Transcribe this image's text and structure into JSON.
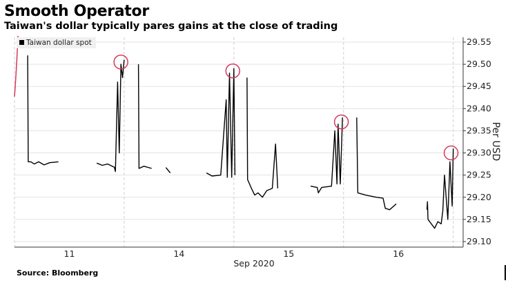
{
  "title": "Smooth Operator",
  "subtitle": "Taiwan's dollar typically pares gains at the close of trading",
  "source": "Source: Bloomberg",
  "chart_data": {
    "type": "line",
    "title": "Smooth Operator",
    "subtitle": "Taiwan's dollar typically pares gains at the close of trading",
    "xlabel": "Sep 2020",
    "ylabel": "Per USD",
    "legend": {
      "label": "Taiwan dollar spot",
      "placement": "top-left"
    },
    "x_unit": "trading session index",
    "xlim": [
      0,
      4.09
    ],
    "ylim": [
      29.1,
      29.55
    ],
    "yticks": [
      "29.10",
      "29.15",
      "29.20",
      "29.25",
      "29.30",
      "29.35",
      "29.40",
      "29.45",
      "29.50",
      "29.55"
    ],
    "xticks": [
      {
        "x": 0.5,
        "label": "11"
      },
      {
        "x": 1.5,
        "label": "14"
      },
      {
        "x": 2.5,
        "label": "15"
      },
      {
        "x": 3.5,
        "label": "16"
      }
    ],
    "session_breaks": [
      0,
      1,
      2,
      3,
      4
    ],
    "highlight_circles": [
      {
        "x": 0.97,
        "y": 29.505
      },
      {
        "x": 1.99,
        "y": 29.485
      },
      {
        "x": 2.98,
        "y": 29.37
      },
      {
        "x": 3.98,
        "y": 29.3
      }
    ],
    "grid": true,
    "series": [
      {
        "name": "Taiwan dollar spot",
        "color": "#000000",
        "points": [
          [
            0.12,
            29.52
          ],
          [
            0.125,
            29.28
          ],
          [
            0.15,
            29.28
          ],
          [
            0.18,
            29.275
          ],
          [
            0.22,
            29.28
          ],
          [
            0.27,
            29.273
          ],
          [
            0.32,
            29.278
          ],
          [
            0.4,
            29.28
          ],
          [
            0.55,
            29.278
          ],
          [
            0.75,
            29.277
          ],
          [
            0.8,
            29.272
          ],
          [
            0.85,
            29.275
          ],
          [
            0.89,
            29.27
          ],
          [
            0.91,
            29.268
          ],
          [
            0.92,
            29.258
          ],
          [
            0.94,
            29.46
          ],
          [
            0.955,
            29.3
          ],
          [
            0.97,
            29.5
          ],
          [
            0.985,
            29.47
          ],
          [
            1.0,
            29.51
          ],
          [
            1.13,
            29.5
          ],
          [
            1.135,
            29.265
          ],
          [
            1.18,
            29.27
          ],
          [
            1.25,
            29.265
          ],
          [
            1.38,
            29.267
          ],
          [
            1.42,
            29.255
          ],
          [
            1.6,
            29.257
          ],
          [
            1.75,
            29.255
          ],
          [
            1.8,
            29.248
          ],
          [
            1.88,
            29.25
          ],
          [
            1.93,
            29.42
          ],
          [
            1.94,
            29.245
          ],
          [
            1.96,
            29.48
          ],
          [
            1.98,
            29.245
          ],
          [
            2.0,
            29.49
          ],
          [
            2.01,
            29.25
          ],
          [
            2.12,
            29.47
          ],
          [
            2.125,
            29.24
          ],
          [
            2.16,
            29.22
          ],
          [
            2.19,
            29.205
          ],
          [
            2.22,
            29.21
          ],
          [
            2.26,
            29.2
          ],
          [
            2.3,
            29.215
          ],
          [
            2.35,
            29.22
          ],
          [
            2.38,
            29.32
          ],
          [
            2.4,
            29.22
          ],
          [
            2.5,
            29.225
          ],
          [
            2.6,
            29.228
          ],
          [
            2.7,
            29.225
          ],
          [
            2.76,
            29.222
          ],
          [
            2.77,
            29.21
          ],
          [
            2.8,
            29.222
          ],
          [
            2.89,
            29.225
          ],
          [
            2.92,
            29.35
          ],
          [
            2.94,
            29.23
          ],
          [
            2.95,
            29.365
          ],
          [
            2.97,
            29.23
          ],
          [
            2.99,
            29.38
          ],
          [
            3.12,
            29.38
          ],
          [
            3.13,
            29.21
          ],
          [
            3.2,
            29.205
          ],
          [
            3.3,
            29.2
          ],
          [
            3.36,
            29.198
          ],
          [
            3.38,
            29.175
          ],
          [
            3.42,
            29.172
          ],
          [
            3.48,
            29.185
          ],
          [
            3.64,
            29.178
          ],
          [
            3.76,
            29.172
          ],
          [
            3.765,
            29.19
          ],
          [
            3.77,
            29.15
          ],
          [
            3.8,
            29.14
          ],
          [
            3.83,
            29.13
          ],
          [
            3.86,
            29.145
          ],
          [
            3.89,
            29.14
          ],
          [
            3.905,
            29.17
          ],
          [
            3.92,
            29.25
          ],
          [
            3.95,
            29.15
          ],
          [
            3.97,
            29.28
          ],
          [
            3.99,
            29.18
          ],
          [
            4.0,
            29.31
          ]
        ]
      }
    ]
  }
}
